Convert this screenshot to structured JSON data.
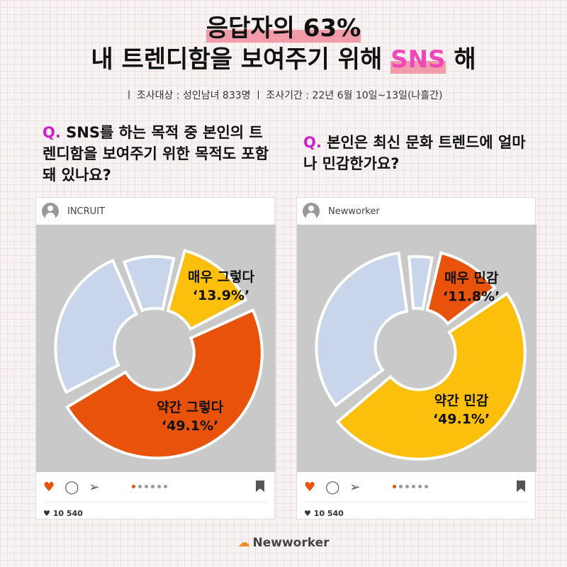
{
  "title": {
    "line1": "응답자의 63%",
    "line2a": "내 트렌디함을 보여주기 위해 ",
    "line2b": "SNS",
    "line2c": " 해"
  },
  "subtitle": "ㅣ 조사대상 : 성인남녀 833명  ㅣ 조사기간 : 22년 6월 10일~13일(나흘간)",
  "colors": {
    "orange": "#e8520a",
    "yellow": "#fbbf0c",
    "lightblue": "#c9d5ea",
    "accent": "#d21ec8"
  },
  "chart_data": [
    {
      "type": "pie",
      "donut": true,
      "source": "INCRUIT",
      "question_mark": "Q.",
      "question": " SNS를 하는 목적 중 본인의 트렌디함을 보여주기 위한 목적도 포함돼 있나요?",
      "slices": [
        {
          "label": "매우 그렇다",
          "value": 13.9,
          "display": "‘13.9%’",
          "color": "#fbbf0c"
        },
        {
          "label": "약간 그렇다",
          "value": 49.1,
          "display": "‘49.1%’",
          "color": "#e8520a"
        },
        {
          "label": "",
          "value": 27,
          "color": "#c9d5ea"
        },
        {
          "label": "",
          "value": 10,
          "color": "#c9d5ea"
        }
      ]
    },
    {
      "type": "pie",
      "donut": true,
      "source": "Newworker",
      "question_mark": "Q.",
      "question": " 본인은 최신 문화 트렌드에 얼마나 민감한가요?",
      "slices": [
        {
          "label": "매우 민감",
          "value": 11.8,
          "display": "‘11.8%’",
          "color": "#e8520a"
        },
        {
          "label": "약간 민감",
          "value": 49.1,
          "display": "‘49.1%’",
          "color": "#fbbf0c"
        },
        {
          "label": "",
          "value": 34,
          "color": "#c9d5ea"
        },
        {
          "label": "",
          "value": 5.1,
          "color": "#c9d5ea"
        }
      ]
    }
  ],
  "card": {
    "likes": "♥ 10 540",
    "heart": "♥",
    "comment": "◯",
    "send": "➢"
  },
  "logo": "Newworker"
}
